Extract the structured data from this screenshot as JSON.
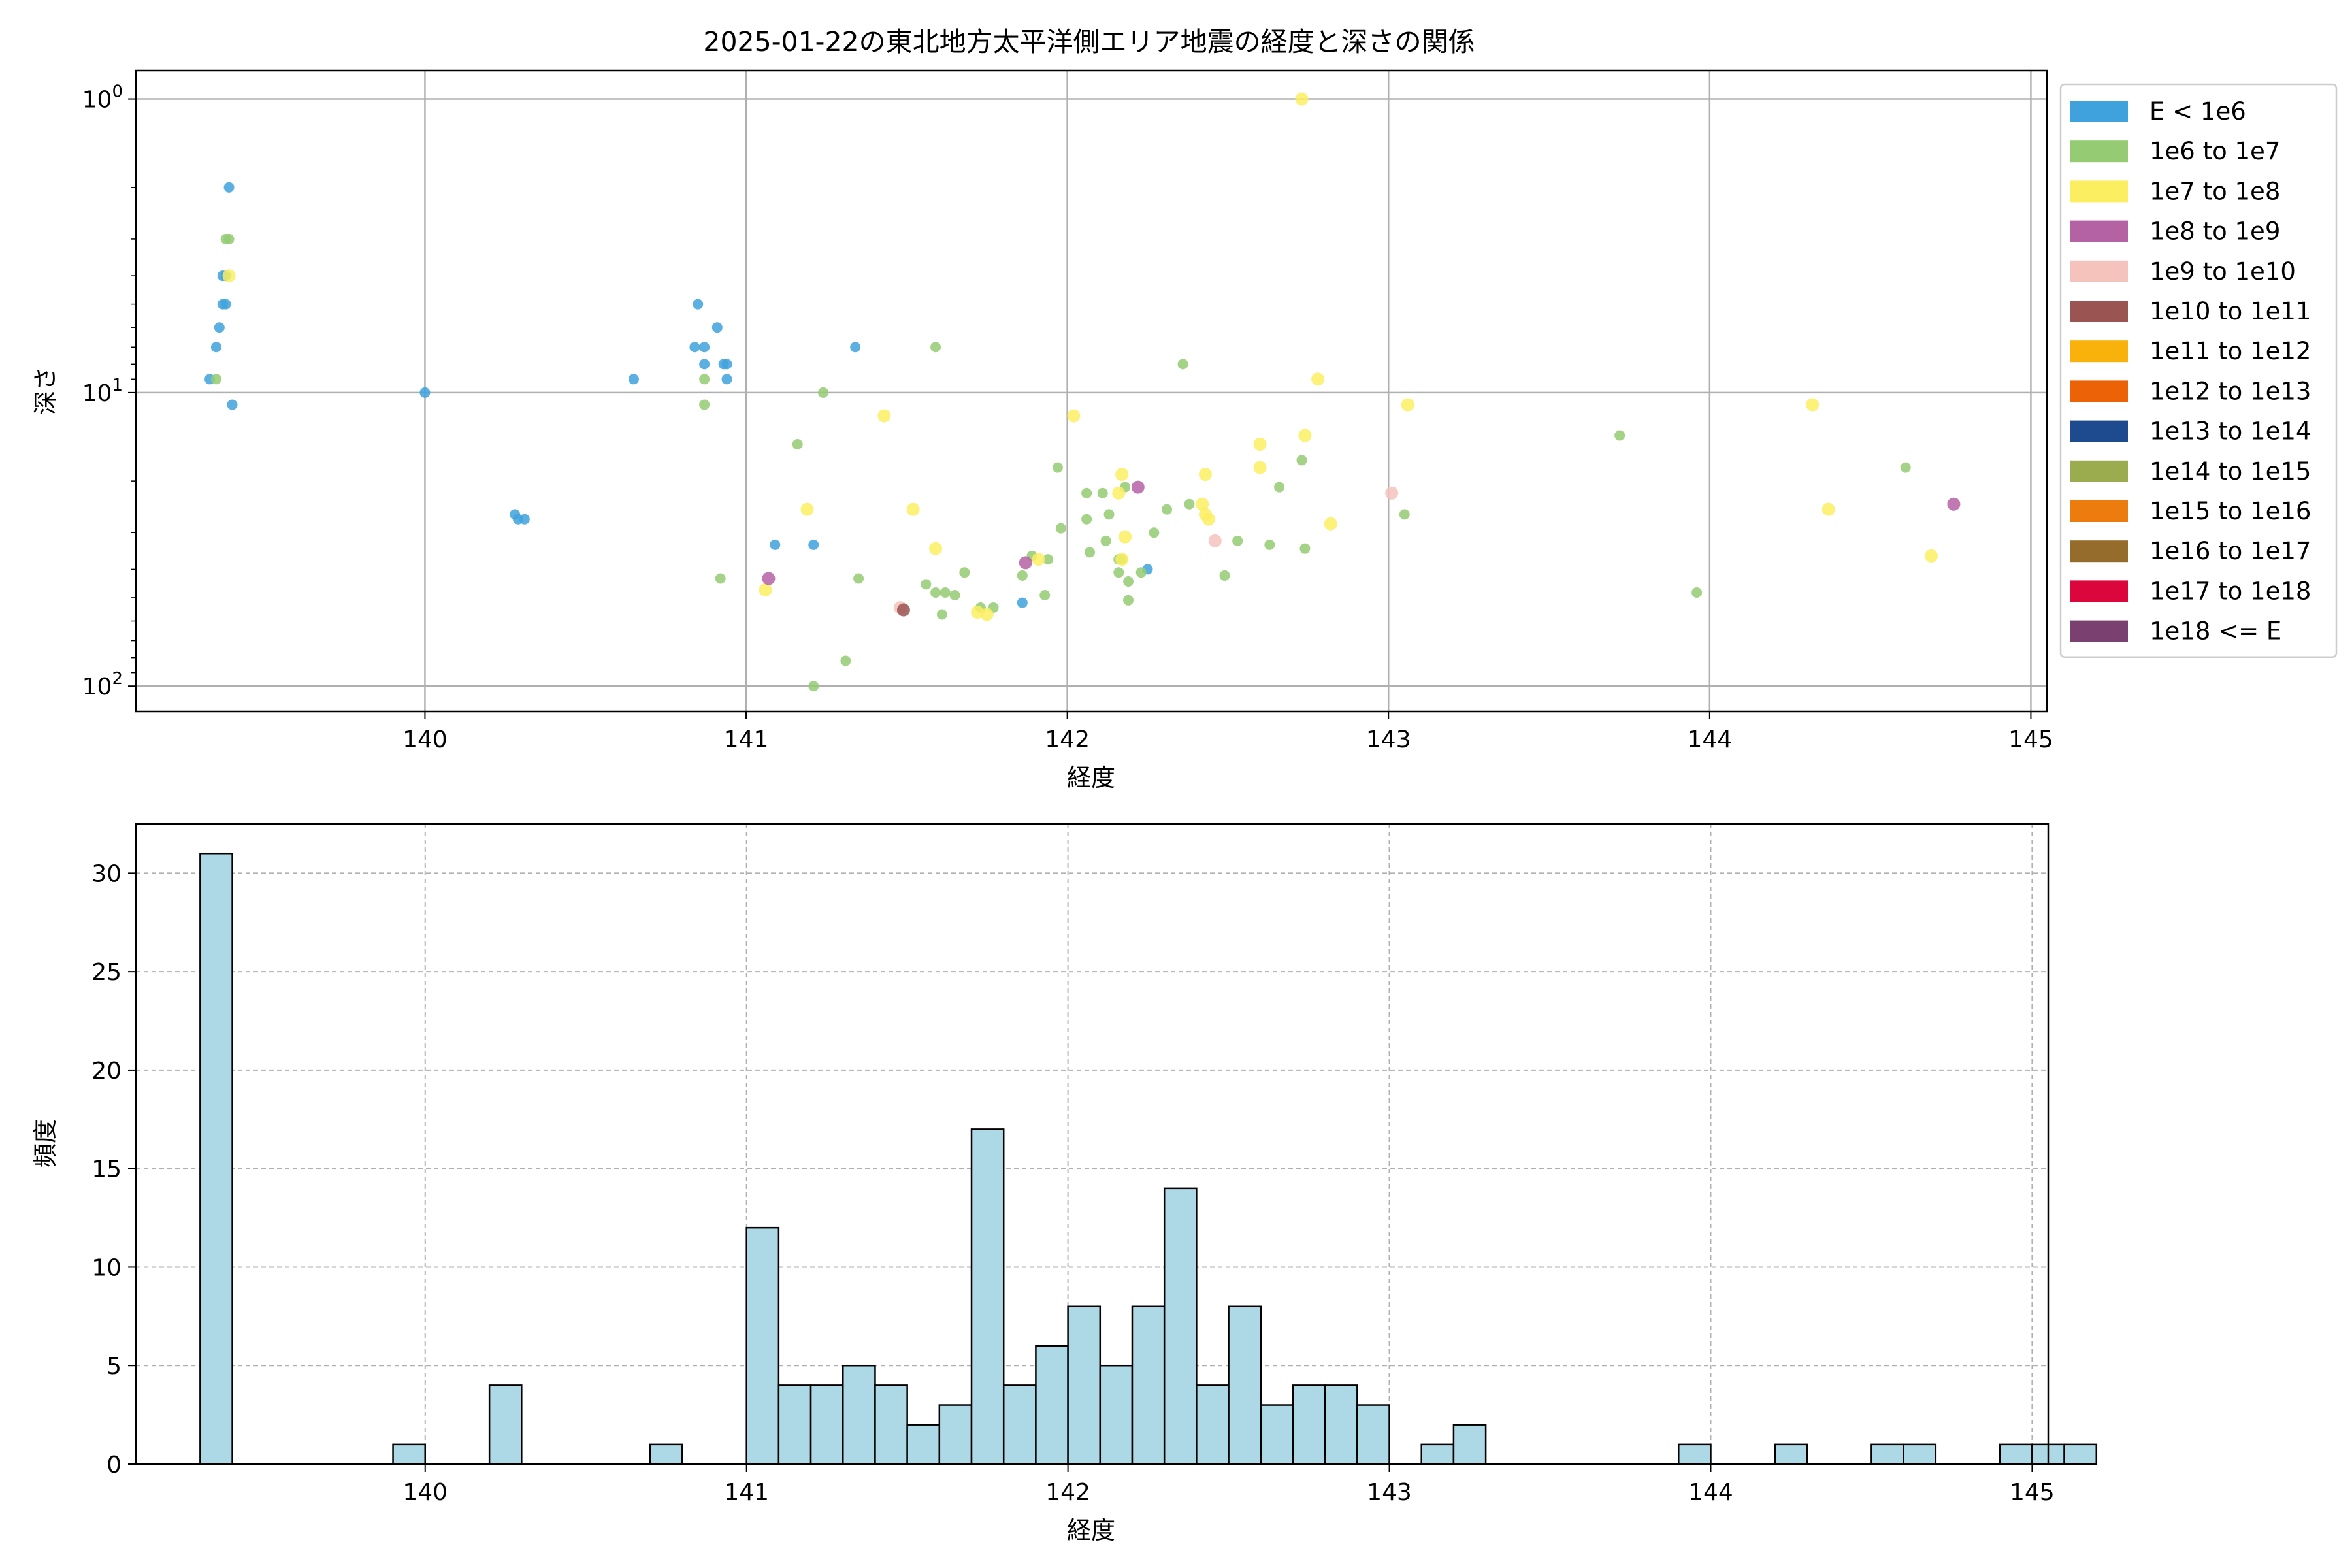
{
  "title": "2025-01-22の東北地方太平洋側エリア地震の経度と深さの関係",
  "colors": {
    "histogram_fill": "#add8e6",
    "histogram_edge": "#000000",
    "grid": "#b0b0b0",
    "axes": "#000000"
  },
  "chart_data": [
    {
      "type": "scatter",
      "title": "2025-01-22の東北地方太平洋側エリア地震の経度と深さの関係",
      "xlabel": "経度",
      "ylabel": "深さ",
      "xlim": [
        139.1,
        145.05
      ],
      "ylim": [
        122,
        0.8
      ],
      "y_scale": "log",
      "y_inverted": true,
      "xticks": [
        140,
        141,
        142,
        143,
        144,
        145
      ],
      "yticks": [
        {
          "value": 1,
          "label": "10^0"
        },
        {
          "value": 10,
          "label": "10^1"
        },
        {
          "value": 100,
          "label": "10^2"
        }
      ],
      "grid": true,
      "legend_position": "outside-right",
      "legend": [
        {
          "label": "E < 1e6",
          "color": "#3fa2dc"
        },
        {
          "label": "1e6 to 1e7",
          "color": "#94cb73"
        },
        {
          "label": "1e7 to 1e8",
          "color": "#fcee61"
        },
        {
          "label": "1e8 to 1e9",
          "color": "#b562a4"
        },
        {
          "label": "1e9 to 1e10",
          "color": "#f6c2bc"
        },
        {
          "label": "1e10 to 1e11",
          "color": "#9a5451"
        },
        {
          "label": "1e11 to 1e12",
          "color": "#f9b10c"
        },
        {
          "label": "1e12 to 1e13",
          "color": "#ec6206"
        },
        {
          "label": "1e13 to 1e14",
          "color": "#1e4a90"
        },
        {
          "label": "1e14 to 1e15",
          "color": "#9bac4e"
        },
        {
          "label": "1e15 to 1e16",
          "color": "#ec7c0e"
        },
        {
          "label": "1e16 to 1e17",
          "color": "#956c2c"
        },
        {
          "label": "1e17 to 1e18",
          "color": "#db063b"
        },
        {
          "label": "1e18 <= E",
          "color": "#7a406f"
        }
      ],
      "series": [
        {
          "name": "E < 1e6",
          "points": [
            [
              139.39,
              2.0
            ],
            [
              139.38,
              4.0
            ],
            [
              139.37,
              4.0
            ],
            [
              139.38,
              5.0
            ],
            [
              139.37,
              5.0
            ],
            [
              139.36,
              6.0
            ],
            [
              139.35,
              7.0
            ],
            [
              139.33,
              9.0
            ],
            [
              139.4,
              11.0
            ],
            [
              140.0,
              10.0
            ],
            [
              140.28,
              26.0
            ],
            [
              140.29,
              27.0
            ],
            [
              140.31,
              27.0
            ],
            [
              140.65,
              9.0
            ],
            [
              140.85,
              5.0
            ],
            [
              140.84,
              7.0
            ],
            [
              140.87,
              7.0
            ],
            [
              140.91,
              6.0
            ],
            [
              140.87,
              8.0
            ],
            [
              140.93,
              8.0
            ],
            [
              140.94,
              8.0
            ],
            [
              140.94,
              9.0
            ],
            [
              141.34,
              7.0
            ],
            [
              141.09,
              33.0
            ],
            [
              141.21,
              33.0
            ],
            [
              141.86,
              52.0
            ],
            [
              142.25,
              40.0
            ]
          ]
        },
        {
          "name": "1e6 to 1e7",
          "points": [
            [
              139.38,
              3.0
            ],
            [
              139.39,
              3.0
            ],
            [
              139.35,
              9.0
            ],
            [
              140.87,
              11.0
            ],
            [
              140.87,
              9.0
            ],
            [
              140.92,
              43.0
            ],
            [
              141.16,
              15.0
            ],
            [
              141.24,
              10.0
            ],
            [
              141.59,
              7.0
            ],
            [
              141.35,
              43.0
            ],
            [
              141.56,
              45.0
            ],
            [
              141.59,
              48.0
            ],
            [
              141.62,
              48.0
            ],
            [
              141.61,
              57.0
            ],
            [
              141.65,
              49.0
            ],
            [
              141.68,
              41.0
            ],
            [
              141.73,
              54.0
            ],
            [
              141.77,
              54.0
            ],
            [
              141.86,
              42.0
            ],
            [
              141.89,
              36.0
            ],
            [
              141.93,
              49.0
            ],
            [
              141.94,
              37.0
            ],
            [
              141.97,
              18.0
            ],
            [
              141.98,
              29.0
            ],
            [
              142.06,
              27.0
            ],
            [
              142.06,
              22.0
            ],
            [
              142.11,
              22.0
            ],
            [
              142.13,
              26.0
            ],
            [
              142.12,
              32.0
            ],
            [
              142.16,
              37.0
            ],
            [
              142.16,
              41.0
            ],
            [
              142.19,
              44.0
            ],
            [
              142.19,
              51.0
            ],
            [
              142.18,
              21.0
            ],
            [
              142.23,
              41.0
            ],
            [
              142.27,
              30.0
            ],
            [
              142.31,
              25.0
            ],
            [
              142.36,
              8.0
            ],
            [
              142.38,
              24.0
            ],
            [
              142.49,
              42.0
            ],
            [
              142.53,
              32.0
            ],
            [
              142.63,
              33.0
            ],
            [
              142.66,
              21.0
            ],
            [
              142.73,
              17.0
            ],
            [
              142.74,
              34.0
            ],
            [
              143.05,
              26.0
            ],
            [
              143.72,
              14.0
            ],
            [
              143.96,
              48.0
            ],
            [
              144.61,
              18.0
            ],
            [
              141.31,
              82.0
            ],
            [
              141.21,
              100.0
            ],
            [
              142.07,
              35.0
            ],
            [
              142.17,
              37.0
            ]
          ]
        },
        {
          "name": "1e7 to 1e8",
          "points": [
            [
              139.39,
              4.0
            ],
            [
              141.43,
              12.0
            ],
            [
              141.19,
              25.0
            ],
            [
              141.52,
              25.0
            ],
            [
              141.59,
              34.0
            ],
            [
              141.06,
              47.0
            ],
            [
              141.72,
              56.0
            ],
            [
              141.75,
              57.0
            ],
            [
              142.02,
              12.0
            ],
            [
              142.17,
              19.0
            ],
            [
              142.16,
              22.0
            ],
            [
              142.18,
              31.0
            ],
            [
              142.17,
              37.0
            ],
            [
              142.42,
              24.0
            ],
            [
              142.43,
              19.0
            ],
            [
              142.43,
              26.0
            ],
            [
              142.44,
              27.0
            ],
            [
              142.6,
              15.0
            ],
            [
              142.6,
              18.0
            ],
            [
              142.74,
              14.0
            ],
            [
              142.78,
              9.0
            ],
            [
              142.82,
              28.0
            ],
            [
              143.06,
              11.0
            ],
            [
              144.32,
              11.0
            ],
            [
              144.37,
              25.0
            ],
            [
              144.69,
              36.0
            ],
            [
              142.73,
              1.0
            ],
            [
              141.91,
              37.0
            ]
          ]
        },
        {
          "name": "1e8 to 1e9",
          "points": [
            [
              141.07,
              43.0
            ],
            [
              141.87,
              38.0
            ],
            [
              142.22,
              21.0
            ],
            [
              144.76,
              24.0
            ]
          ]
        },
        {
          "name": "1e9 to 1e10",
          "points": [
            [
              141.48,
              54.0
            ],
            [
              143.01,
              22.0
            ],
            [
              142.46,
              32.0
            ]
          ]
        },
        {
          "name": "1e10 to 1e11",
          "points": [
            [
              141.49,
              55.0
            ]
          ]
        }
      ]
    },
    {
      "type": "bar",
      "subtype": "histogram",
      "xlabel": "経度",
      "ylabel": "頻度",
      "xlim": [
        139.1,
        145.05
      ],
      "ylim": [
        0,
        32.5
      ],
      "xticks": [
        140,
        141,
        142,
        143,
        144,
        145
      ],
      "yticks": [
        0,
        5,
        10,
        15,
        20,
        25,
        30
      ],
      "grid": true,
      "bin_start": 139.3,
      "bin_width": 0.1,
      "values": [
        31,
        0,
        0,
        0,
        0,
        0,
        1,
        0,
        0,
        4,
        0,
        0,
        0,
        0,
        1,
        0,
        0,
        12,
        4,
        4,
        5,
        4,
        2,
        3,
        17,
        4,
        6,
        8,
        5,
        8,
        14,
        4,
        8,
        3,
        4,
        4,
        3,
        0,
        1,
        2,
        0,
        0,
        0,
        0,
        0,
        0,
        1,
        0,
        0,
        1,
        0,
        0,
        1,
        1,
        0,
        0,
        1,
        1,
        1
      ]
    }
  ]
}
